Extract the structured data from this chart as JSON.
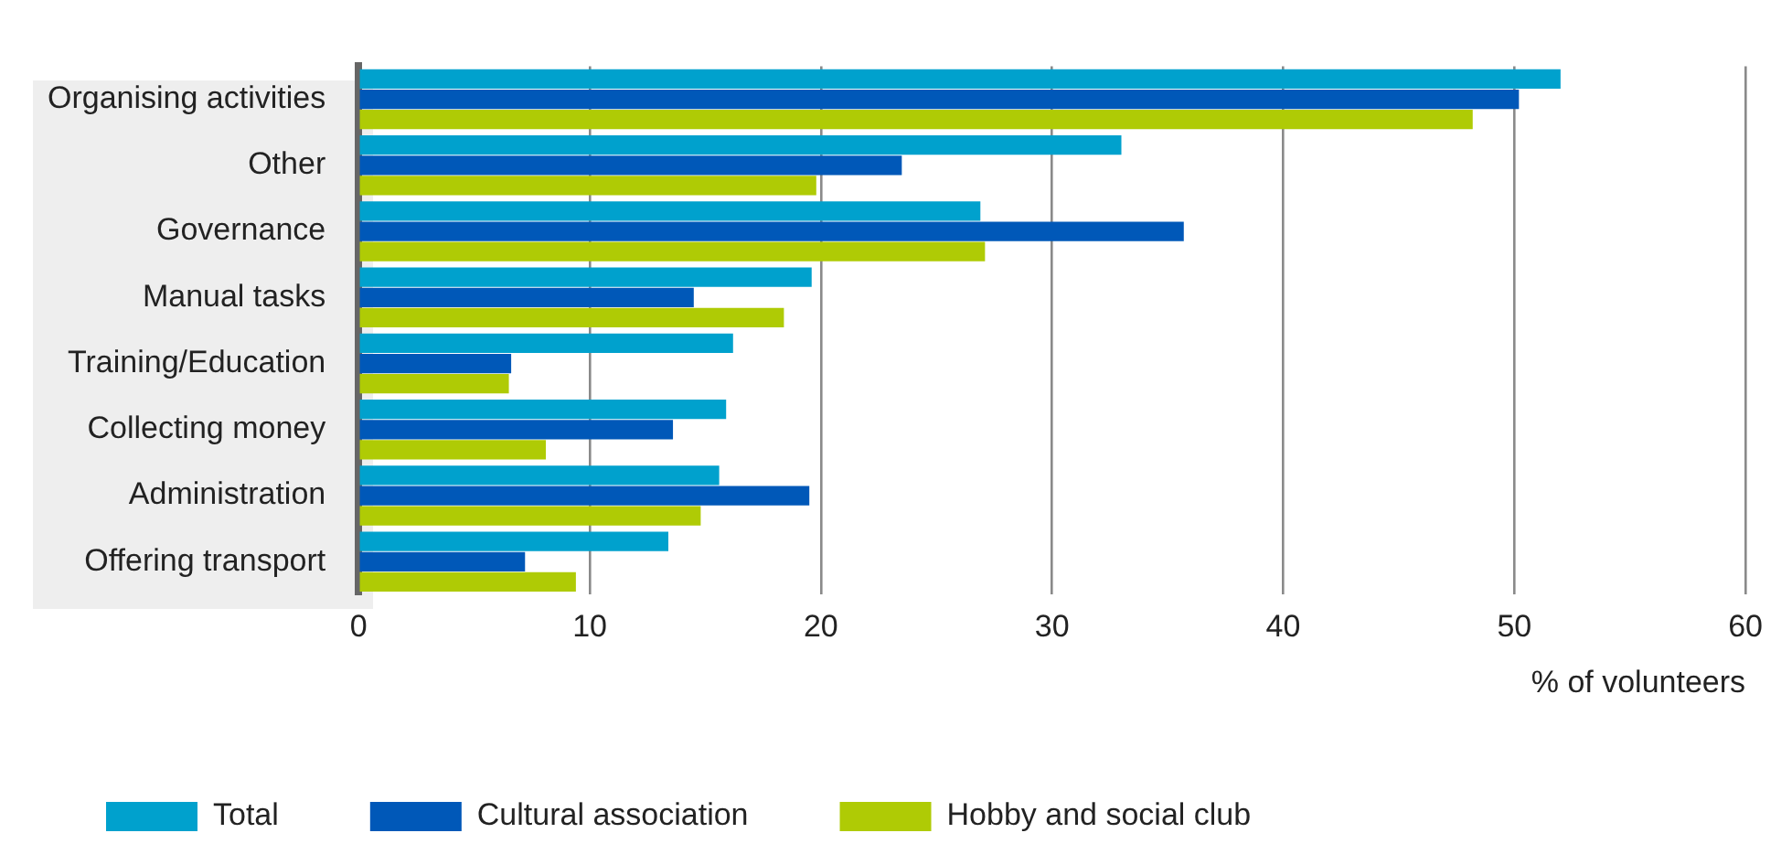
{
  "chart_data": {
    "type": "bar",
    "orientation": "horizontal",
    "xlabel": "% of volunteers",
    "categories": [
      "Organising activities",
      "Other",
      "Governance",
      "Manual tasks",
      "Training/Education",
      "Collecting money",
      "Administration",
      "Offering transport"
    ],
    "series": [
      {
        "name": "Total",
        "color": "#00a1cd",
        "values": [
          52.0,
          33.0,
          26.9,
          19.6,
          16.2,
          15.9,
          15.6,
          13.4
        ]
      },
      {
        "name": "Cultural association",
        "color": "#0058b8",
        "values": [
          50.2,
          23.5,
          35.7,
          14.5,
          6.6,
          13.6,
          19.5,
          7.2
        ]
      },
      {
        "name": "Hobby and social club",
        "color": "#afcb05",
        "values": [
          48.2,
          19.8,
          27.1,
          18.4,
          6.5,
          8.1,
          14.8,
          9.4
        ]
      }
    ],
    "xlim": [
      0,
      60
    ],
    "xticks": [
      0,
      10,
      20,
      30,
      40,
      50,
      60
    ],
    "grid": "x",
    "legend": "bottom left"
  }
}
